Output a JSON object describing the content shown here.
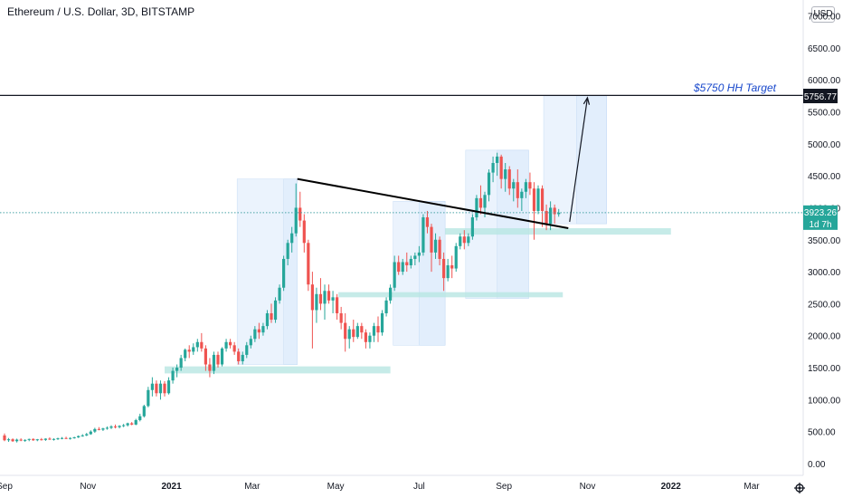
{
  "header": {
    "title": "Ethereum / U.S. Dollar, 3D, BITSTAMP",
    "currency_button": "USD"
  },
  "colors": {
    "up": "#26a69a",
    "down": "#ef5350",
    "price_line": "#4aa3a6",
    "box_fill": "#dbe9fb",
    "zone_fill": "#b8e6e2",
    "trendline": "#000000",
    "annotation_text": "#1848cc"
  },
  "price_badge": {
    "price": "3923.26",
    "countdown": "1d 7h"
  },
  "target": {
    "label": "$5750 HH Target",
    "price_label": "5756.77",
    "value": 5756.77
  },
  "chart_data": {
    "type": "candlestick",
    "title": "Ethereum / U.S. Dollar, 3D, BITSTAMP",
    "ylim": [
      0,
      7000
    ],
    "y_ticks": [
      {
        "value": 7000,
        "label": "7000.00"
      },
      {
        "value": 6500,
        "label": "6500.00"
      },
      {
        "value": 6000,
        "label": "6000.00"
      },
      {
        "value": 5500,
        "label": "5500.00"
      },
      {
        "value": 5000,
        "label": "5000.00"
      },
      {
        "value": 4500,
        "label": "4500.00"
      },
      {
        "value": 4000,
        "label": "4000.00"
      },
      {
        "value": 3500,
        "label": "3500.00"
      },
      {
        "value": 3000,
        "label": "3000.00"
      },
      {
        "value": 2500,
        "label": "2500.00"
      },
      {
        "value": 2000,
        "label": "2000.00"
      },
      {
        "value": 1500,
        "label": "1500.00"
      },
      {
        "value": 1000,
        "label": "1000.00"
      },
      {
        "value": 500,
        "label": "500.00"
      },
      {
        "value": 0,
        "label": "0.00"
      }
    ],
    "x_ticks": [
      {
        "day": 0,
        "label": "Sep",
        "bold": false
      },
      {
        "day": 61,
        "label": "Nov",
        "bold": false
      },
      {
        "day": 122,
        "label": "2021",
        "bold": true
      },
      {
        "day": 181,
        "label": "Mar",
        "bold": false
      },
      {
        "day": 242,
        "label": "May",
        "bold": false
      },
      {
        "day": 303,
        "label": "Jul",
        "bold": false
      },
      {
        "day": 365,
        "label": "Sep",
        "bold": false
      },
      {
        "day": 426,
        "label": "Nov",
        "bold": false
      },
      {
        "day": 487,
        "label": "2022",
        "bold": true
      },
      {
        "day": 546,
        "label": "Mar",
        "bold": false
      }
    ],
    "candles": [
      [
        0,
        440,
        470,
        350,
        365
      ],
      [
        3,
        365,
        400,
        340,
        380
      ],
      [
        6,
        380,
        395,
        340,
        350
      ],
      [
        9,
        350,
        390,
        330,
        375
      ],
      [
        12,
        375,
        395,
        350,
        360
      ],
      [
        15,
        360,
        380,
        340,
        370
      ],
      [
        18,
        370,
        390,
        350,
        385
      ],
      [
        21,
        385,
        395,
        355,
        365
      ],
      [
        24,
        365,
        385,
        350,
        380
      ],
      [
        27,
        380,
        400,
        360,
        370
      ],
      [
        30,
        370,
        395,
        355,
        390
      ],
      [
        33,
        390,
        410,
        370,
        375
      ],
      [
        36,
        375,
        395,
        360,
        385
      ],
      [
        39,
        385,
        405,
        370,
        395
      ],
      [
        42,
        395,
        415,
        380,
        400
      ],
      [
        45,
        400,
        420,
        385,
        390
      ],
      [
        48,
        390,
        410,
        375,
        400
      ],
      [
        51,
        400,
        420,
        390,
        410
      ],
      [
        54,
        410,
        440,
        400,
        430
      ],
      [
        57,
        430,
        460,
        420,
        440
      ],
      [
        60,
        440,
        480,
        430,
        460
      ],
      [
        63,
        460,
        520,
        450,
        500
      ],
      [
        66,
        500,
        560,
        480,
        540
      ],
      [
        69,
        540,
        570,
        520,
        530
      ],
      [
        72,
        530,
        560,
        510,
        550
      ],
      [
        75,
        550,
        580,
        530,
        560
      ],
      [
        78,
        560,
        600,
        540,
        580
      ],
      [
        81,
        580,
        610,
        550,
        570
      ],
      [
        84,
        570,
        600,
        550,
        590
      ],
      [
        87,
        590,
        620,
        570,
        600
      ],
      [
        90,
        600,
        640,
        580,
        630
      ],
      [
        93,
        630,
        650,
        600,
        610
      ],
      [
        96,
        610,
        700,
        600,
        680
      ],
      [
        99,
        680,
        780,
        660,
        740
      ],
      [
        102,
        740,
        920,
        720,
        900
      ],
      [
        105,
        900,
        1200,
        880,
        1150
      ],
      [
        108,
        1150,
        1350,
        1050,
        1250
      ],
      [
        111,
        1250,
        1300,
        1050,
        1100
      ],
      [
        114,
        1100,
        1300,
        1000,
        1250
      ],
      [
        117,
        1250,
        1290,
        1050,
        1100
      ],
      [
        120,
        1100,
        1350,
        1080,
        1300
      ],
      [
        123,
        1300,
        1500,
        1250,
        1450
      ],
      [
        126,
        1450,
        1550,
        1350,
        1500
      ],
      [
        129,
        1500,
        1700,
        1450,
        1650
      ],
      [
        132,
        1650,
        1800,
        1600,
        1780
      ],
      [
        135,
        1780,
        1850,
        1650,
        1750
      ],
      [
        138,
        1750,
        1880,
        1700,
        1820
      ],
      [
        141,
        1820,
        1950,
        1750,
        1900
      ],
      [
        144,
        1900,
        2040,
        1750,
        1800
      ],
      [
        147,
        1800,
        1850,
        1450,
        1550
      ],
      [
        150,
        1550,
        1650,
        1350,
        1450
      ],
      [
        153,
        1450,
        1750,
        1400,
        1700
      ],
      [
        156,
        1700,
        1750,
        1500,
        1550
      ],
      [
        159,
        1550,
        1820,
        1520,
        1800
      ],
      [
        162,
        1800,
        1950,
        1750,
        1900
      ],
      [
        165,
        1900,
        1950,
        1800,
        1850
      ],
      [
        168,
        1850,
        1900,
        1700,
        1750
      ],
      [
        171,
        1750,
        1800,
        1550,
        1600
      ],
      [
        174,
        1600,
        1750,
        1550,
        1700
      ],
      [
        177,
        1700,
        1900,
        1650,
        1850
      ],
      [
        180,
        1850,
        2000,
        1800,
        1950
      ],
      [
        183,
        1950,
        2150,
        1900,
        2100
      ],
      [
        186,
        2100,
        2200,
        1950,
        2050
      ],
      [
        189,
        2050,
        2200,
        2000,
        2150
      ],
      [
        192,
        2150,
        2400,
        2100,
        2350
      ],
      [
        195,
        2350,
        2500,
        2200,
        2250
      ],
      [
        198,
        2250,
        2600,
        2200,
        2550
      ],
      [
        201,
        2550,
        2800,
        2500,
        2750
      ],
      [
        204,
        2750,
        3250,
        2700,
        3200
      ],
      [
        207,
        3200,
        3500,
        3100,
        3450
      ],
      [
        210,
        3450,
        3700,
        3300,
        3600
      ],
      [
        213,
        3600,
        4380,
        3550,
        4000
      ],
      [
        216,
        4000,
        4250,
        3700,
        3800
      ],
      [
        219,
        3800,
        3900,
        3300,
        3450
      ],
      [
        222,
        3450,
        3500,
        2700,
        2800
      ],
      [
        225,
        2800,
        3000,
        1800,
        2400
      ],
      [
        228,
        2400,
        2750,
        2200,
        2650
      ],
      [
        231,
        2650,
        2900,
        2400,
        2500
      ],
      [
        234,
        2500,
        2800,
        2250,
        2700
      ],
      [
        237,
        2700,
        2800,
        2500,
        2550
      ],
      [
        240,
        2550,
        2700,
        2350,
        2600
      ],
      [
        243,
        2600,
        2650,
        2250,
        2350
      ],
      [
        246,
        2350,
        2450,
        2100,
        2200
      ],
      [
        249,
        2200,
        2350,
        1750,
        1950
      ],
      [
        252,
        1950,
        2150,
        1800,
        2100
      ],
      [
        255,
        2100,
        2250,
        1900,
        1980
      ],
      [
        258,
        1980,
        2200,
        1950,
        2150
      ],
      [
        261,
        2150,
        2200,
        1950,
        2050
      ],
      [
        264,
        2050,
        2100,
        1800,
        1900
      ],
      [
        267,
        1900,
        2050,
        1800,
        2000
      ],
      [
        270,
        2000,
        2200,
        1900,
        2150
      ],
      [
        273,
        2150,
        2300,
        1900,
        2050
      ],
      [
        276,
        2050,
        2400,
        2000,
        2350
      ],
      [
        279,
        2350,
        2600,
        2300,
        2550
      ],
      [
        282,
        2550,
        2800,
        2500,
        2750
      ],
      [
        285,
        2750,
        3250,
        2700,
        3150
      ],
      [
        288,
        3150,
        3250,
        2950,
        3000
      ],
      [
        291,
        3000,
        3200,
        2950,
        3150
      ],
      [
        294,
        3150,
        3300,
        3000,
        3100
      ],
      [
        297,
        3100,
        3250,
        3050,
        3200
      ],
      [
        300,
        3200,
        3300,
        3100,
        3250
      ],
      [
        303,
        3250,
        3400,
        3150,
        3300
      ],
      [
        306,
        3300,
        3900,
        3250,
        3850
      ],
      [
        309,
        3850,
        3950,
        3600,
        3700
      ],
      [
        312,
        3700,
        3750,
        3000,
        3300
      ],
      [
        315,
        3300,
        3600,
        3200,
        3500
      ],
      [
        318,
        3500,
        3550,
        3100,
        3200
      ],
      [
        321,
        3200,
        3300,
        2700,
        2900
      ],
      [
        324,
        2900,
        3200,
        2850,
        3100
      ],
      [
        327,
        3100,
        3250,
        2900,
        3050
      ],
      [
        330,
        3050,
        3450,
        3000,
        3400
      ],
      [
        333,
        3400,
        3600,
        3350,
        3550
      ],
      [
        336,
        3550,
        3650,
        3350,
        3450
      ],
      [
        339,
        3450,
        3600,
        3400,
        3550
      ],
      [
        342,
        3550,
        3900,
        3500,
        3850
      ],
      [
        345,
        3850,
        4200,
        3800,
        4150
      ],
      [
        348,
        4150,
        4350,
        3900,
        4000
      ],
      [
        351,
        4000,
        4250,
        3850,
        4200
      ],
      [
        354,
        4200,
        4600,
        4100,
        4550
      ],
      [
        357,
        4550,
        4800,
        4400,
        4700
      ],
      [
        360,
        4700,
        4860,
        4500,
        4800
      ],
      [
        363,
        4800,
        4830,
        4300,
        4450
      ],
      [
        366,
        4450,
        4700,
        4250,
        4600
      ],
      [
        369,
        4600,
        4650,
        4200,
        4300
      ],
      [
        372,
        4300,
        4450,
        4100,
        4400
      ],
      [
        375,
        4400,
        4600,
        4000,
        4150
      ],
      [
        378,
        4150,
        4300,
        3950,
        4250
      ],
      [
        381,
        4250,
        4450,
        4150,
        4400
      ],
      [
        384,
        4400,
        4550,
        4200,
        4300
      ],
      [
        387,
        4300,
        4400,
        3500,
        3950
      ],
      [
        390,
        3950,
        4350,
        3900,
        4300
      ],
      [
        393,
        4300,
        4350,
        3700,
        3950
      ],
      [
        396,
        3950,
        4050,
        3650,
        3750
      ],
      [
        399,
        3750,
        4100,
        3650,
        4000
      ],
      [
        402,
        4000,
        4050,
        3750,
        3900
      ],
      [
        405,
        3900,
        3980,
        3860,
        3923
      ]
    ],
    "annotations": {
      "horizontal_line": 5756.77,
      "trendline": [
        [
          214,
          4450
        ],
        [
          412,
          3680
        ]
      ],
      "projection_arrow": [
        [
          413,
          3780
        ],
        [
          426,
          5720
        ]
      ],
      "date_range_boxes": [
        [
          170,
          214,
          1550,
          4450
        ],
        [
          204,
          214,
          1550,
          4450
        ],
        [
          284,
          322,
          1850,
          4100
        ],
        [
          303,
          322,
          1850,
          4100
        ],
        [
          337,
          383,
          2580,
          4900
        ],
        [
          360,
          383,
          2580,
          4900
        ],
        [
          394,
          440,
          3750,
          5750
        ],
        [
          418,
          440,
          3750,
          5750
        ]
      ],
      "support_zones": [
        [
          117,
          282,
          1410,
          1520
        ],
        [
          244,
          408,
          2600,
          2680
        ],
        [
          322,
          487,
          3580,
          3680
        ]
      ],
      "last_price": 3923.26
    }
  }
}
